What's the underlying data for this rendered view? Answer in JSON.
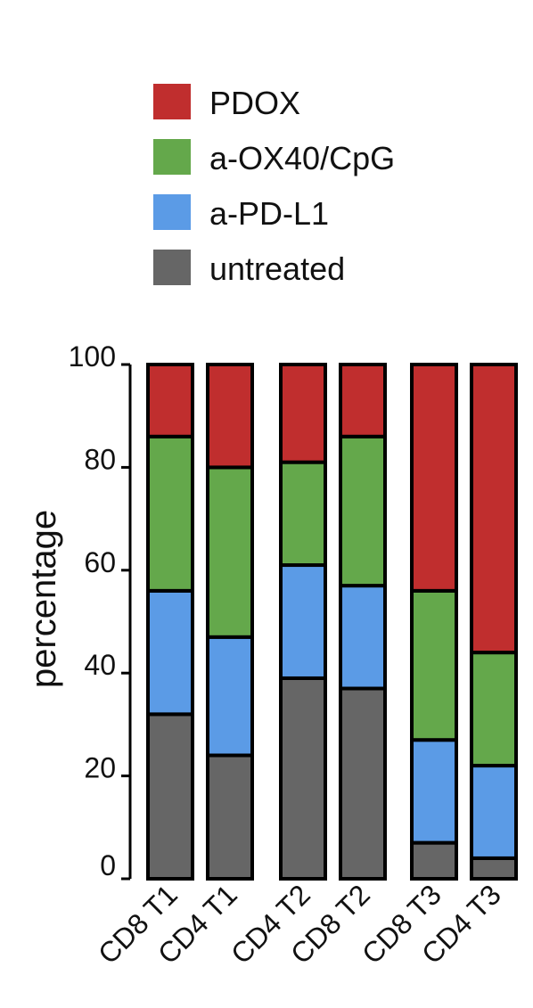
{
  "chart_data": {
    "type": "bar",
    "stacked": true,
    "ylabel": "percentage",
    "ylim": [
      0,
      100
    ],
    "yticks": [
      "0",
      "20",
      "40",
      "60",
      "80",
      "100"
    ],
    "grid": false,
    "legend_position": "top",
    "categories": [
      "CD8 T1",
      "CD4 T1",
      "CD4 T2",
      "CD8 T2",
      "CD8 T3",
      "CD4 T3"
    ],
    "series": [
      {
        "name": "untreated",
        "color": "#666666",
        "values": [
          32,
          24,
          39,
          37,
          7,
          4
        ]
      },
      {
        "name": "a-PD-L1",
        "color": "#5b9be6",
        "values": [
          24,
          23,
          22,
          20,
          20,
          18
        ]
      },
      {
        "name": "a-OX40/CpG",
        "color": "#64a84b",
        "values": [
          30,
          33,
          20,
          29,
          29,
          22
        ]
      },
      {
        "name": "PDOX",
        "color": "#c02e2e",
        "values": [
          14,
          20,
          19,
          14,
          44,
          56
        ]
      }
    ],
    "legend_order": [
      "PDOX",
      "a-OX40/CpG",
      "a-PD-L1",
      "untreated"
    ]
  }
}
